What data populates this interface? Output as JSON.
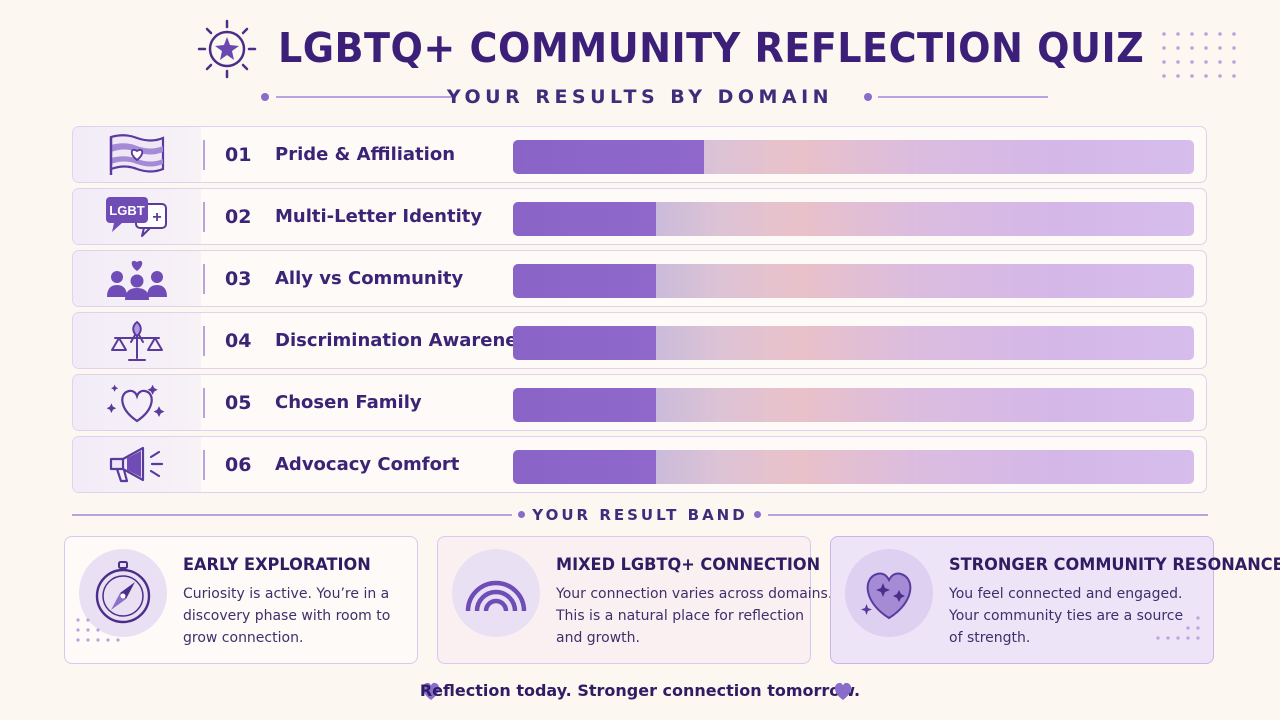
{
  "header": {
    "title": "LGBTQ+ COMMUNITY REFLECTION QUIZ",
    "subtitle": "YOUR RESULTS BY DOMAIN",
    "emblem_icon": "star-burst-icon"
  },
  "domains": [
    {
      "number": "01",
      "label": "Pride & Affiliation",
      "icon": "pride-flag-heart-icon",
      "fill": 0.28
    },
    {
      "number": "02",
      "label": "Multi-Letter Identity",
      "icon": "lgbt-plus-speech-bubbles-icon",
      "icon_text": "LGBT",
      "icon_text2": "+",
      "fill": 0.21
    },
    {
      "number": "03",
      "label": "Ally vs Community",
      "icon": "community-people-heart-icon",
      "fill": 0.21
    },
    {
      "number": "04",
      "label": "Discrimination Awareness",
      "icon": "scales-ribbon-icon",
      "fill": 0.21
    },
    {
      "number": "05",
      "label": "Chosen Family",
      "icon": "heart-sparkle-icon",
      "fill": 0.21
    },
    {
      "number": "06",
      "label": "Advocacy Comfort",
      "icon": "megaphone-icon",
      "fill": 0.21
    }
  ],
  "band": {
    "title": "YOUR RESULT BAND",
    "cards": [
      {
        "title": "EARLY EXPLORATION",
        "icon": "compass-icon",
        "lines": [
          "Curiosity is active. You’re in a",
          "discovery phase with room to",
          "grow connection."
        ]
      },
      {
        "title": "MIXED LGBTQ+ CONNECTION",
        "icon": "rainbow-icon",
        "lines": [
          "Your connection varies across domains.",
          "This is a natural place for reflection",
          "and growth."
        ]
      },
      {
        "title": "STRONGER COMMUNITY RESONANCE",
        "icon": "sparkle-heart-icon",
        "lines": [
          "You feel connected and engaged.",
          "Your community ties are a source",
          "of strength."
        ]
      }
    ]
  },
  "footer": {
    "text": "Reflection today. Stronger connection tomorrow."
  },
  "colors": {
    "accent": "#8964c6",
    "title": "#3b1f78",
    "background": "#fcf7f1"
  }
}
